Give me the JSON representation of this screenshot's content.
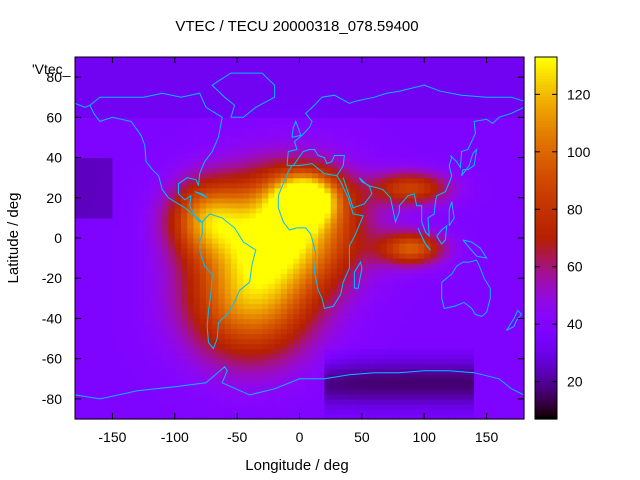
{
  "chart_data": {
    "type": "heatmap",
    "title": "VTEC / TECU 20000318_078.59400",
    "xlabel": "Longitude / deg",
    "ylabel": "Latitude / deg",
    "xlim": [
      -180,
      180
    ],
    "ylim": [
      -90,
      90
    ],
    "xticks": [
      -150,
      -100,
      -50,
      0,
      50,
      100,
      150
    ],
    "yticks": [
      -80,
      -60,
      -40,
      -20,
      0,
      20,
      40,
      60,
      80
    ],
    "colorbar": {
      "range": [
        7,
        133
      ],
      "ticks": [
        20,
        40,
        60,
        80,
        100,
        120
      ]
    },
    "legend_key": "'Vtec_",
    "overlay": "coastlines",
    "colors": {
      "coastline": "#00bfff",
      "palette_low": "#000000",
      "palette_mid": "#8c00ff",
      "palette_high": "#ffff00"
    },
    "field_features": [
      {
        "lon": -10,
        "lat": 5,
        "value": 128,
        "spread_lon": 55,
        "spread_lat": 28
      },
      {
        "lon": -40,
        "lat": -30,
        "value": 110,
        "spread_lon": 50,
        "spread_lat": 30
      },
      {
        "lon": 5,
        "lat": 20,
        "value": 118,
        "spread_lon": 25,
        "spread_lat": 12
      },
      {
        "lon": 90,
        "lat": -5,
        "value": 95,
        "spread_lon": 25,
        "spread_lat": 8
      },
      {
        "lon": 90,
        "lat": 25,
        "value": 85,
        "spread_lon": 30,
        "spread_lat": 8
      },
      {
        "lon": -75,
        "lat": 10,
        "value": 95,
        "spread_lon": 30,
        "spread_lat": 18
      }
    ],
    "background_value": 38
  }
}
